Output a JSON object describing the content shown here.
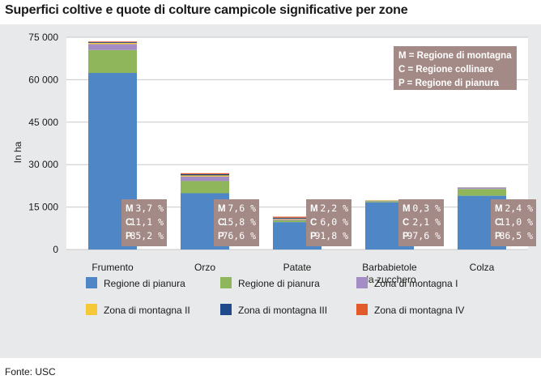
{
  "title": "Superfici coltive e quote di colture campicole significative per zone",
  "source": "Fonte: USC",
  "colors": {
    "panel_bg": "#e8e9ea",
    "plot_bg": "#ffffff",
    "grid": "#c8c8c8",
    "label_box": "#a48a86"
  },
  "chart_data": {
    "type": "bar",
    "stacked": true,
    "ylabel": "In ha",
    "ylim": [
      0,
      75000
    ],
    "yticks": [
      0,
      15000,
      30000,
      45000,
      60000,
      75000
    ],
    "ytick_labels": [
      "0",
      "15 000",
      "30 000",
      "45 000",
      "60 000",
      "75 000"
    ],
    "grid": true,
    "categories": [
      "Frumento",
      "Orzo",
      "Patate",
      "Barbabietole da zucchero",
      "Colza"
    ],
    "category_lines": [
      [
        "Frumento"
      ],
      [
        "Orzo"
      ],
      [
        "Patate"
      ],
      [
        "Barbabietole",
        "da zucchero"
      ],
      [
        "Colza"
      ]
    ],
    "series": [
      {
        "name": "Regione di pianura",
        "color": "#4f86c6",
        "values": [
          62400,
          19900,
          9700,
          16700,
          19000
        ]
      },
      {
        "name": "Regione di pianura",
        "color": "#8fb65a",
        "values": [
          8100,
          4300,
          630,
          360,
          2400
        ]
      },
      {
        "name": "Zona di montagna I",
        "color": "#a48cc4",
        "values": [
          2100,
          1600,
          360,
          120,
          460
        ]
      },
      {
        "name": "Zona di montagna II",
        "color": "#f5c838",
        "values": [
          430,
          400,
          200,
          140,
          40
        ]
      },
      {
        "name": "Zona di montagna III",
        "color": "#1f4a8c",
        "values": [
          300,
          420,
          330,
          40,
          50
        ]
      },
      {
        "name": "Zona di montagna IV",
        "color": "#e25a2a",
        "values": [
          200,
          350,
          380,
          20,
          20
        ]
      }
    ],
    "shares": [
      [
        {
          "key": "M",
          "value": "3,7 %"
        },
        {
          "key": "C",
          "value": "11,1 %"
        },
        {
          "key": "P",
          "value": "85,2 %"
        }
      ],
      [
        {
          "key": "M",
          "value": "7,6 %"
        },
        {
          "key": "C",
          "value": "15,8 %"
        },
        {
          "key": "P",
          "value": "76,6 %"
        }
      ],
      [
        {
          "key": "M",
          "value": "2,2 %"
        },
        {
          "key": "C",
          "value": "6,0 %"
        },
        {
          "key": "P",
          "value": "91,8 %"
        }
      ],
      [
        {
          "key": "M",
          "value": "0,3 %"
        },
        {
          "key": "C",
          "value": "2,1 %"
        },
        {
          "key": "P",
          "value": "97,6 %"
        }
      ],
      [
        {
          "key": "M",
          "value": "2,4 %"
        },
        {
          "key": "C",
          "value": "11,0 %"
        },
        {
          "key": "P",
          "value": "86,5 %"
        }
      ]
    ],
    "key_box": [
      "M = Regione di montagna",
      "C = Regione collinare",
      "P = Regione di pianura"
    ],
    "legend_placement": "bottom"
  }
}
